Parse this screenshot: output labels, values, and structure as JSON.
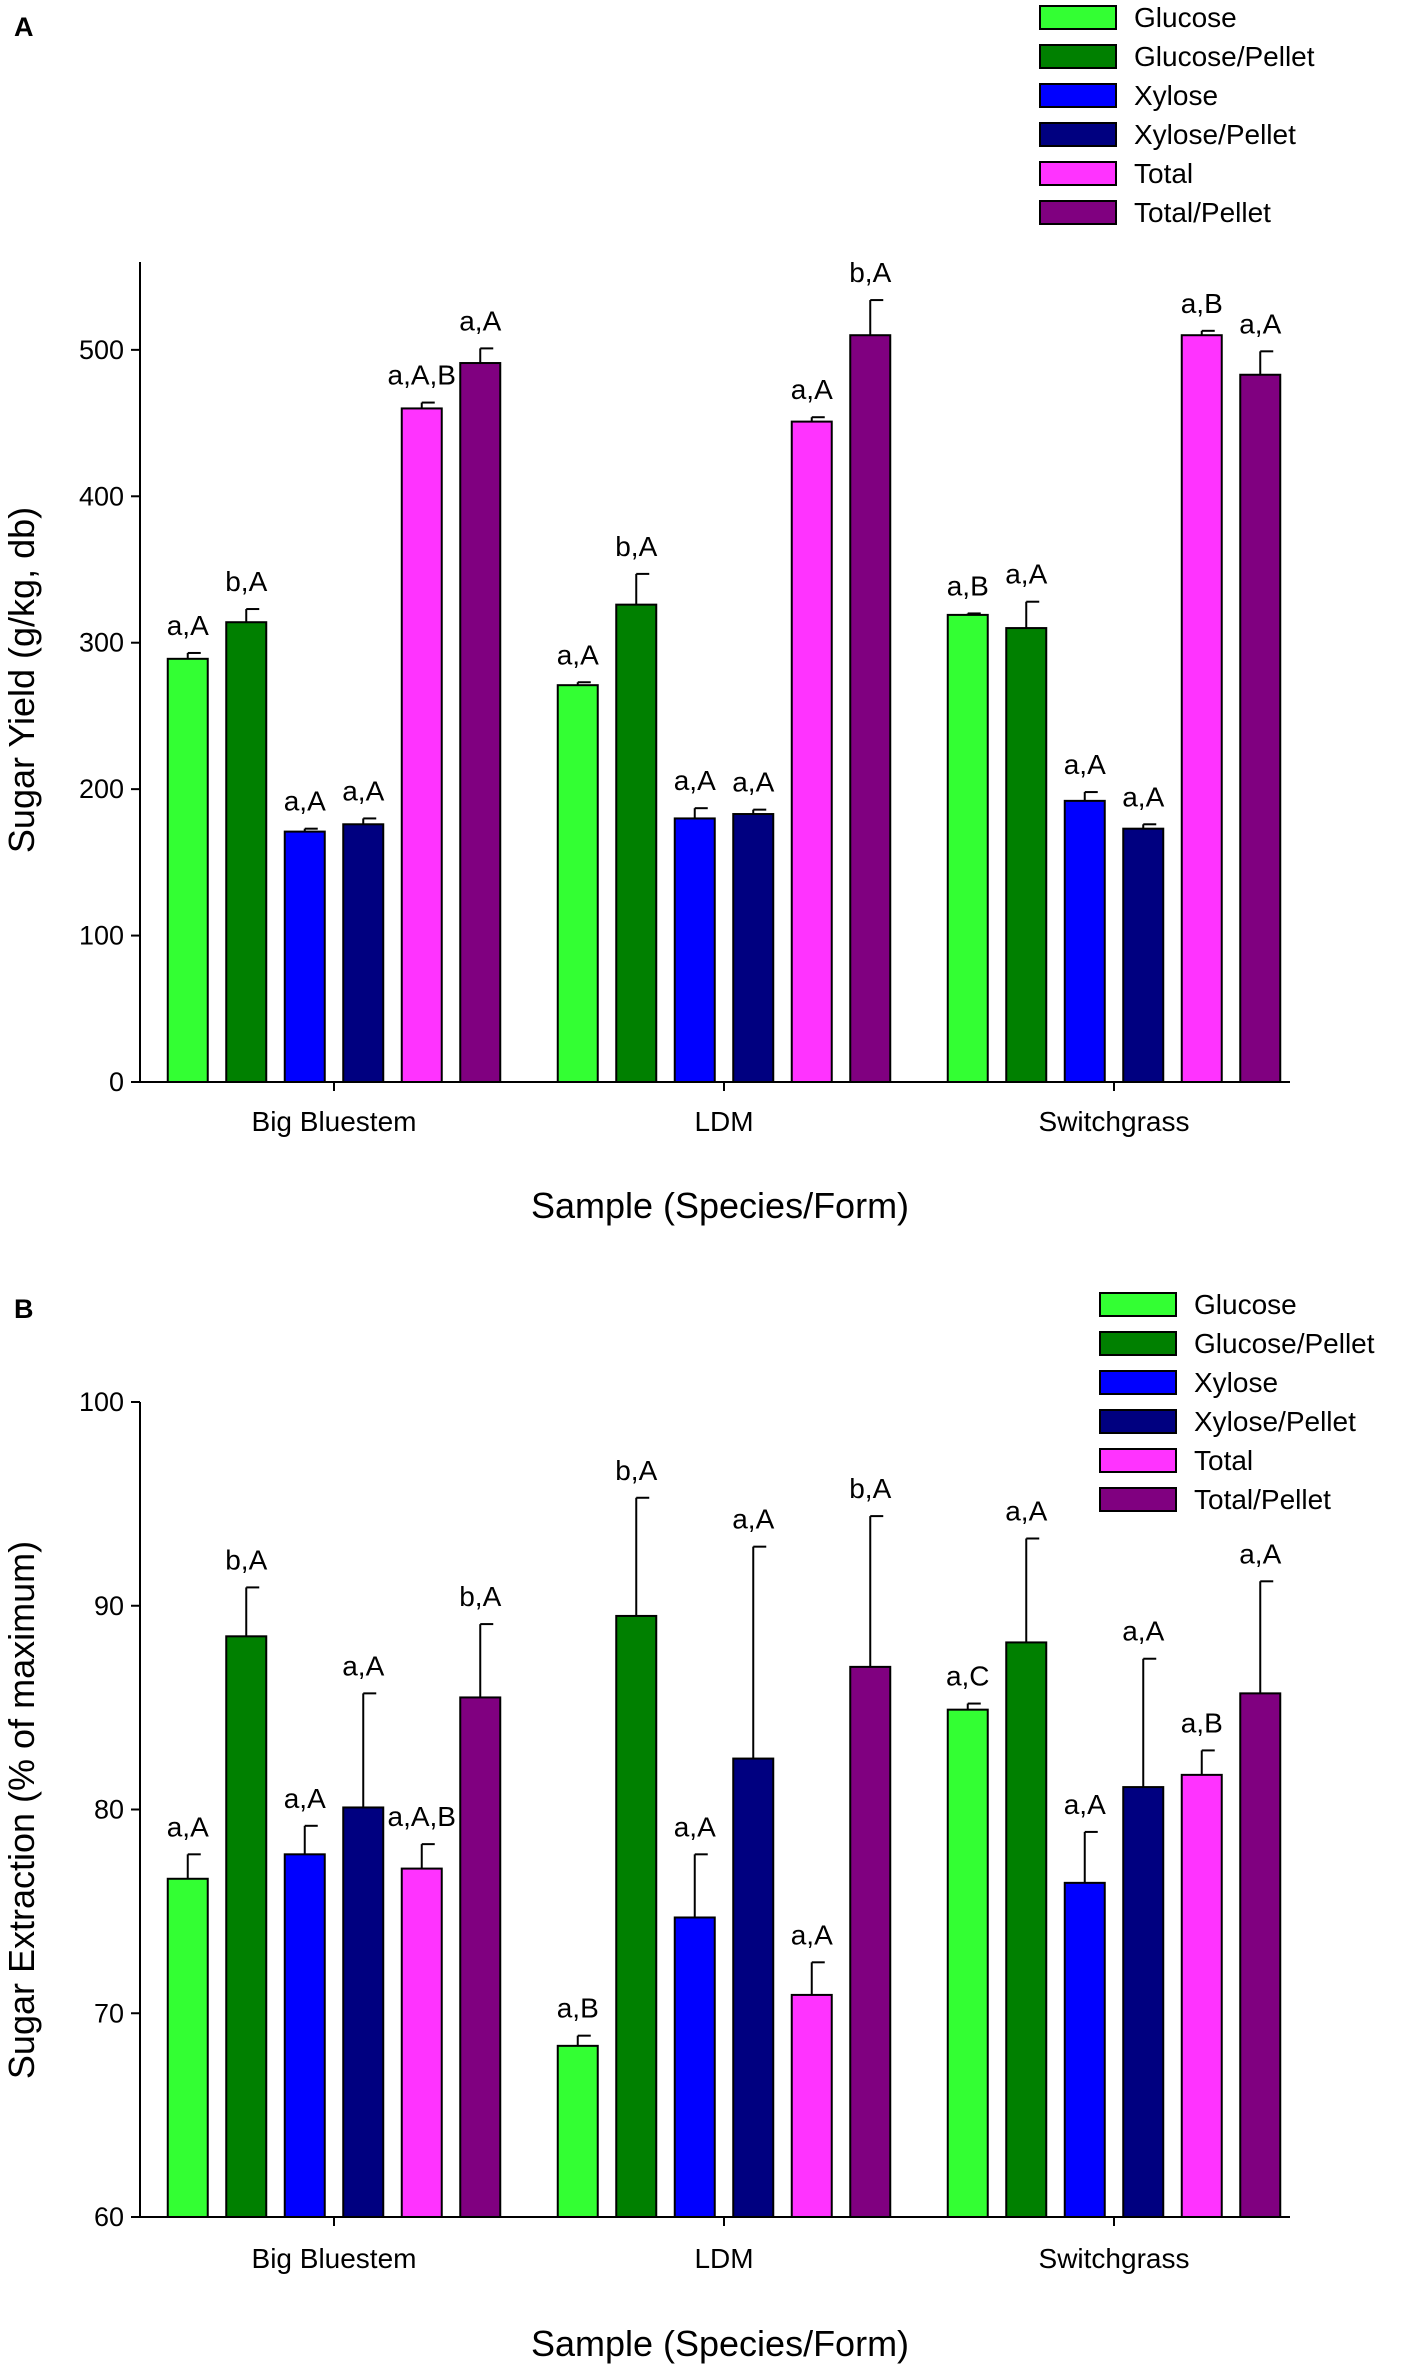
{
  "chart_data": [
    {
      "panel": "A",
      "type": "bar",
      "categories": [
        "Big Bluestem",
        "LDM",
        "Switchgrass"
      ],
      "xlabel": "Sample (Species/Form)",
      "ylabel": "Sugar Yield (g/kg, db)",
      "ylim": [
        0,
        560
      ],
      "yticks": [
        "0",
        "100",
        "200",
        "300",
        "400",
        "500"
      ],
      "legend_position": "top-right",
      "series": [
        {
          "name": "Glucose",
          "color": "#33ff33",
          "values": [
            289,
            271,
            319
          ],
          "errors": [
            4,
            2,
            1
          ],
          "labels": [
            "a,A",
            "a,A",
            "a,B"
          ]
        },
        {
          "name": "Glucose/Pellet",
          "color": "#008000",
          "values": [
            314,
            326,
            310
          ],
          "errors": [
            9,
            21,
            18
          ],
          "labels": [
            "b,A",
            "b,A",
            "a,A"
          ]
        },
        {
          "name": "Xylose",
          "color": "#0000ff",
          "values": [
            171,
            180,
            192
          ],
          "errors": [
            2,
            7,
            6
          ],
          "labels": [
            "a,A",
            "a,A",
            "a,A"
          ]
        },
        {
          "name": "Xylose/Pellet",
          "color": "#000080",
          "values": [
            176,
            183,
            173
          ],
          "errors": [
            4,
            3,
            3
          ],
          "labels": [
            "a,A",
            "a,A",
            "a,A"
          ]
        },
        {
          "name": "Total",
          "color": "#ff33ff",
          "values": [
            460,
            451,
            510
          ],
          "errors": [
            4,
            3,
            3
          ],
          "labels": [
            "a,A,B",
            "a,A",
            "a,B"
          ]
        },
        {
          "name": "Total/Pellet",
          "color": "#800080",
          "values": [
            491,
            510,
            483
          ],
          "errors": [
            10,
            24,
            16
          ],
          "labels": [
            "a,A",
            "b,A",
            "a,A"
          ]
        }
      ]
    },
    {
      "panel": "B",
      "type": "bar",
      "categories": [
        "Big Bluestem",
        "LDM",
        "Switchgrass"
      ],
      "xlabel": "Sample (Species/Form)",
      "ylabel": "Sugar Extraction (% of maximum)",
      "ylim": [
        60,
        100
      ],
      "yticks": [
        "60",
        "70",
        "80",
        "90",
        "100"
      ],
      "legend_position": "top-right",
      "series": [
        {
          "name": "Glucose",
          "color": "#33ff33",
          "values": [
            76.6,
            68.4,
            84.9
          ],
          "errors": [
            1.2,
            0.5,
            0.3
          ],
          "labels": [
            "a,A",
            "a,B",
            "a,C"
          ]
        },
        {
          "name": "Glucose/Pellet",
          "color": "#008000",
          "values": [
            88.5,
            89.5,
            88.2
          ],
          "errors": [
            2.4,
            5.8,
            5.1
          ],
          "labels": [
            "b,A",
            "b,A",
            "a,A"
          ]
        },
        {
          "name": "Xylose",
          "color": "#0000ff",
          "values": [
            77.8,
            74.7,
            76.4
          ],
          "errors": [
            1.4,
            3.1,
            2.5
          ],
          "labels": [
            "a,A",
            "a,A",
            "a,A"
          ]
        },
        {
          "name": "Xylose/Pellet",
          "color": "#000080",
          "values": [
            80.1,
            82.5,
            81.1
          ],
          "errors": [
            5.6,
            10.4,
            6.3
          ],
          "labels": [
            "a,A",
            "a,A",
            "a,A"
          ]
        },
        {
          "name": "Total",
          "color": "#ff33ff",
          "values": [
            77.1,
            70.9,
            81.7
          ],
          "errors": [
            1.2,
            1.6,
            1.2
          ],
          "labels": [
            "a,A,B",
            "a,A",
            "a,B"
          ]
        },
        {
          "name": "Total/Pellet",
          "color": "#800080",
          "values": [
            85.5,
            87.0,
            85.7
          ],
          "errors": [
            3.6,
            7.4,
            5.5
          ],
          "labels": [
            "b,A",
            "b,A",
            "a,A"
          ]
        }
      ]
    }
  ]
}
